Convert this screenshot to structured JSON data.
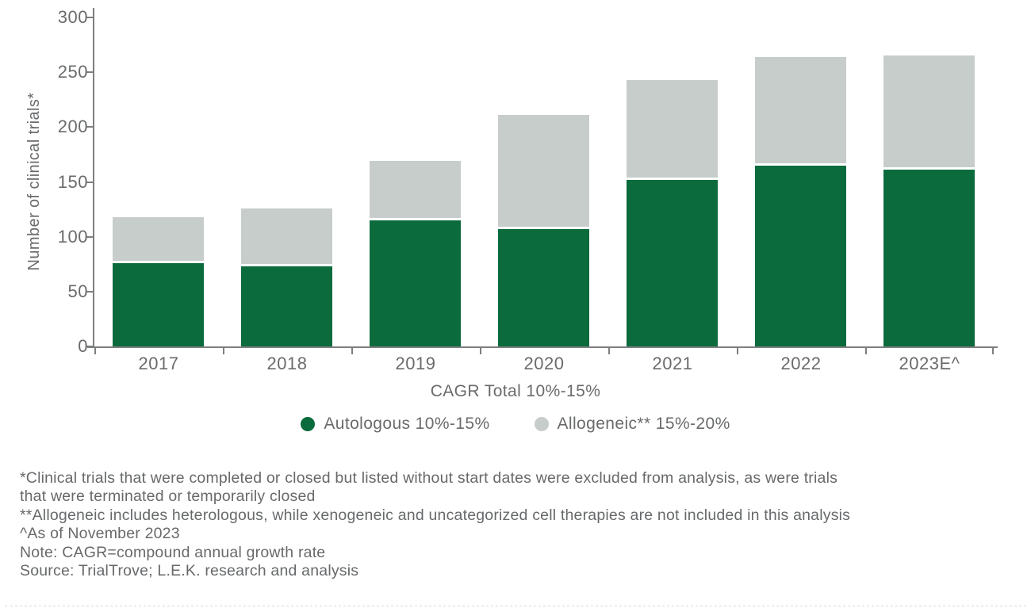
{
  "chart_data": {
    "type": "bar",
    "stacked": true,
    "categories": [
      "2017",
      "2018",
      "2019",
      "2020",
      "2021",
      "2022",
      "2023E^"
    ],
    "series": [
      {
        "name": "Autologous 10%-15%",
        "color": "#0b6b3d",
        "values": [
          76,
          73,
          115,
          107,
          152,
          165,
          161
        ]
      },
      {
        "name": "Allogeneic** 15%-20%",
        "color": "#c7cdca",
        "values": [
          42,
          53,
          54,
          104,
          91,
          99,
          104
        ]
      }
    ],
    "totals": [
      118,
      126,
      169,
      211,
      243,
      264,
      265
    ],
    "ylabel": "Number of clinical trials*",
    "xlabel": "CAGR Total 10%-15%",
    "ylim": [
      0,
      300
    ],
    "yticks": [
      0,
      50,
      100,
      150,
      200,
      250,
      300
    ],
    "grid": false,
    "legend_position": "bottom"
  },
  "footnotes": {
    "lines": [
      "*Clinical trials that were completed or closed but listed without start dates were excluded from analysis, as were trials",
      "that were terminated or temporarily closed",
      "**Allogeneic includes heterologous, while xenogeneic and uncategorized cell therapies are not included in this analysis",
      "^As of November 2023",
      "Note: CAGR=compound annual growth rate",
      "Source: TrialTrove; L.E.K. research and analysis"
    ]
  },
  "colors": {
    "autologous": "#0b6b3d",
    "allogeneic": "#c7cdca",
    "axis_line": "#7d7f7f",
    "text": "#696b6d",
    "background": "#ffffff"
  }
}
